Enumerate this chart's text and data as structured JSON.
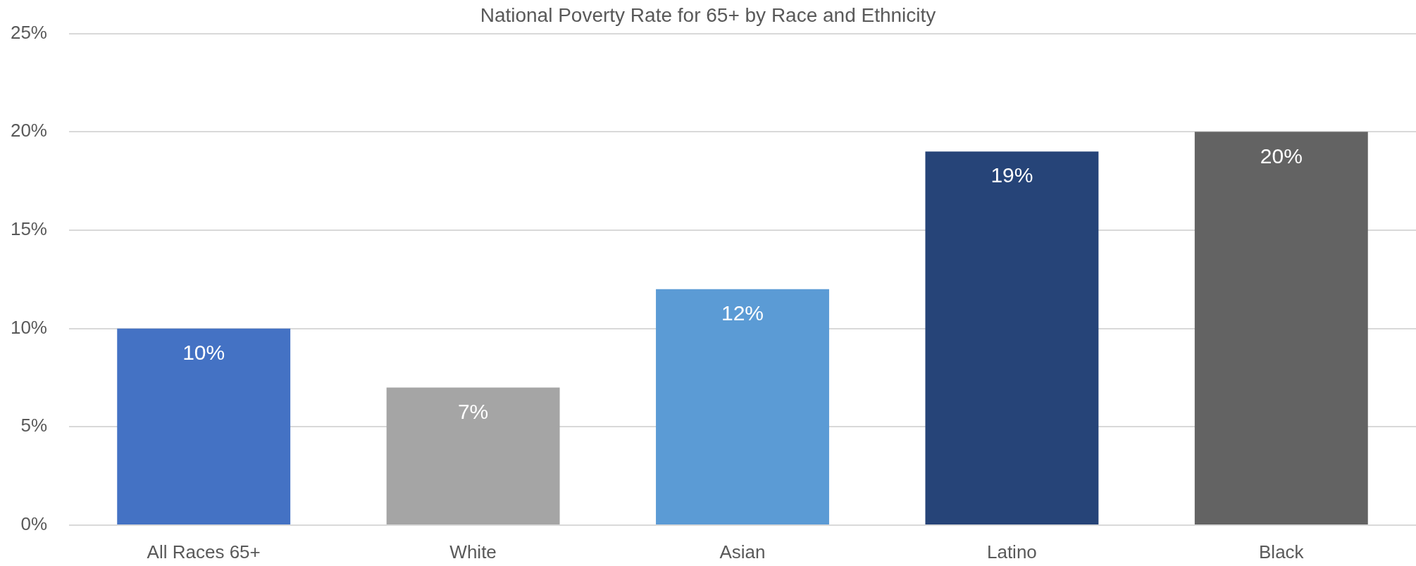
{
  "chart_data": {
    "type": "bar",
    "title": "National Poverty Rate for 65+ by Race and Ethnicity",
    "categories": [
      "All Races 65+",
      "White",
      "Asian",
      "Latino",
      "Black"
    ],
    "values": [
      10,
      7,
      12,
      19,
      20
    ],
    "colors": [
      "#4472c4",
      "#a5a5a5",
      "#5b9bd5",
      "#264478",
      "#636363"
    ],
    "value_labels": [
      "10%",
      "7%",
      "12%",
      "19%",
      "20%"
    ],
    "ylim": [
      0,
      25
    ],
    "yticks": [
      {
        "value": 0,
        "label": "0%"
      },
      {
        "value": 5,
        "label": "5%"
      },
      {
        "value": 10,
        "label": "10%"
      },
      {
        "value": 15,
        "label": "15%"
      },
      {
        "value": 20,
        "label": "20%"
      },
      {
        "value": 25,
        "label": "25%"
      }
    ],
    "grid": "y"
  }
}
